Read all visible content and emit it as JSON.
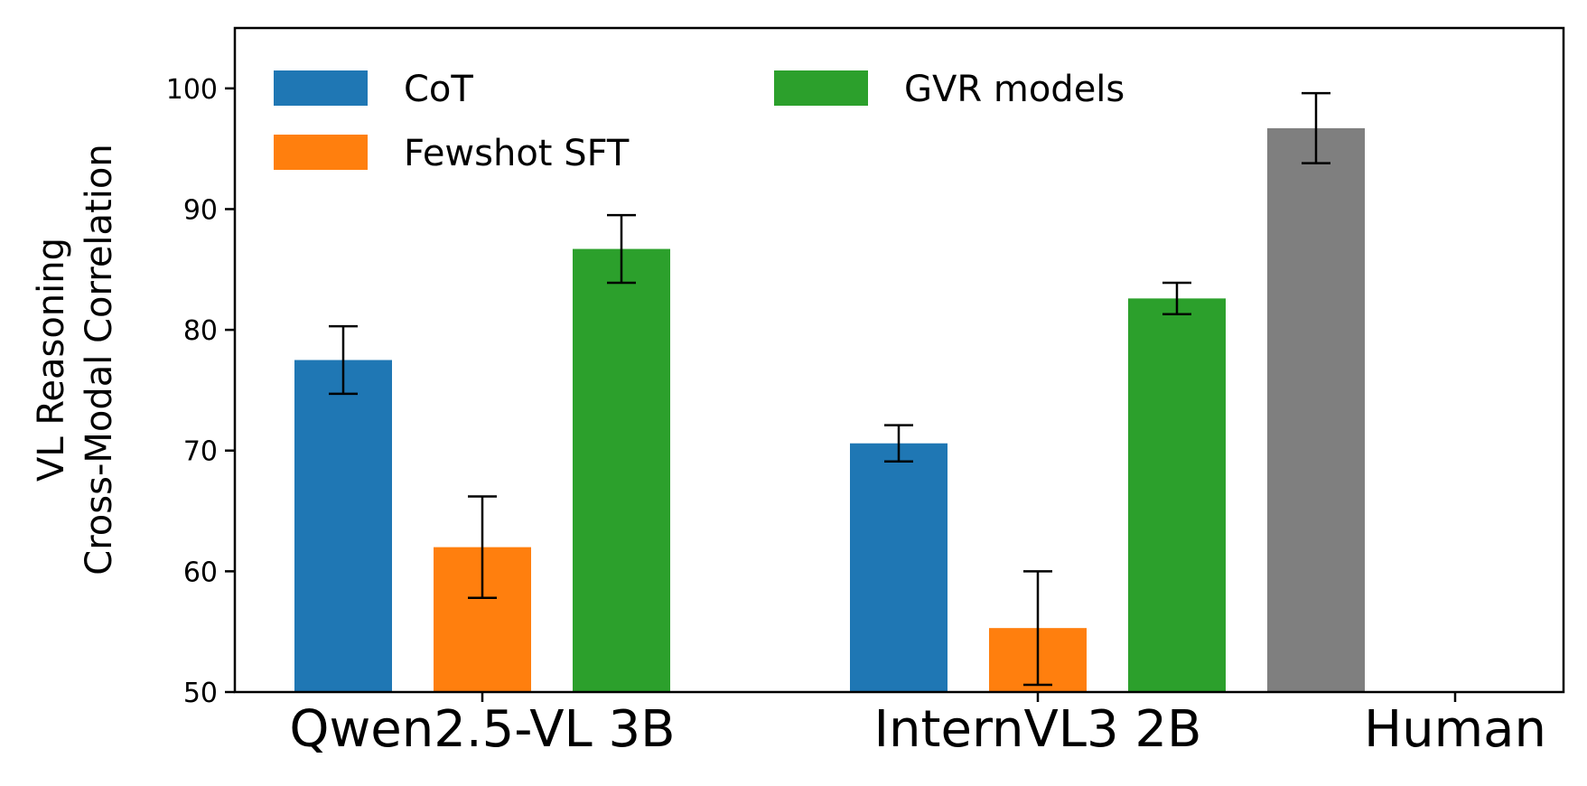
{
  "chart_data": {
    "type": "bar",
    "categories": [
      "Qwen2.5-VL 3B",
      "InternVL3 2B",
      "Human"
    ],
    "ylabel_lines": [
      "VL Reasoning",
      "Cross-Modal Correlation"
    ],
    "ylim": [
      50,
      105
    ],
    "yticks": [
      50,
      60,
      70,
      80,
      90,
      100
    ],
    "grid": false,
    "legend_position": "top-left",
    "legend_columns": 2,
    "series": [
      {
        "name": "CoT",
        "color": "#1f77b4",
        "values": [
          77.5,
          70.6,
          null
        ],
        "errors": [
          2.8,
          1.5,
          null
        ]
      },
      {
        "name": "Fewshot SFT",
        "color": "#ff7f0e",
        "values": [
          62.0,
          55.3,
          null
        ],
        "errors": [
          4.2,
          4.7,
          null
        ]
      },
      {
        "name": "GVR models",
        "color": "#2ca02c",
        "values": [
          86.7,
          82.6,
          null
        ],
        "errors": [
          2.8,
          1.3,
          null
        ]
      },
      {
        "name": "",
        "color": "#7f7f7f",
        "values": [
          null,
          null,
          96.7
        ],
        "errors": [
          null,
          null,
          2.9
        ]
      }
    ]
  }
}
